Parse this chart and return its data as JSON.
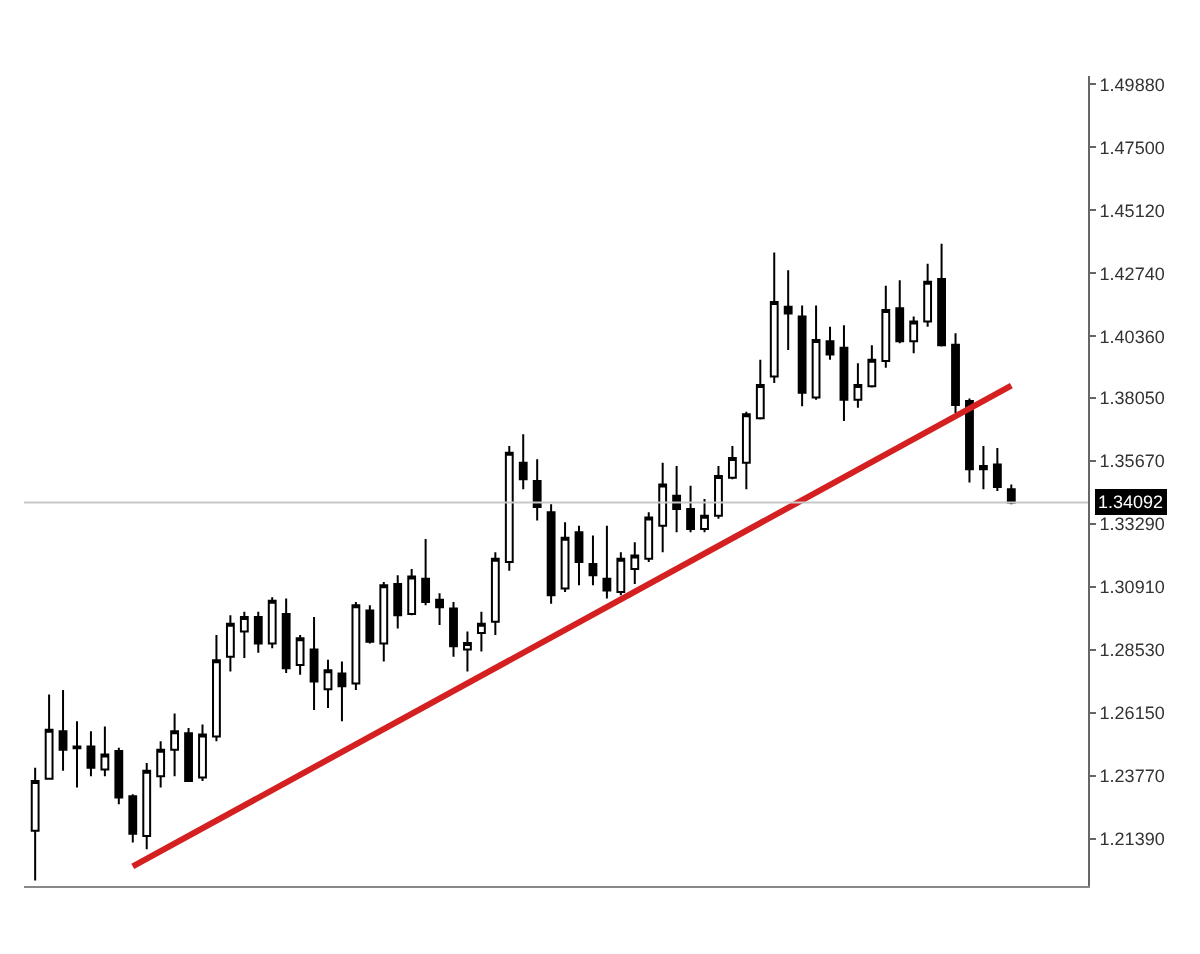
{
  "chart_data": {
    "type": "candlestick",
    "categories": [
      null,
      null,
      null,
      null,
      null,
      null,
      null,
      null,
      null,
      null,
      null,
      null,
      null,
      null,
      null,
      null,
      null,
      null,
      null,
      null,
      null,
      null,
      null,
      null,
      null,
      null,
      null,
      null,
      null,
      null,
      null,
      null,
      null,
      null,
      null,
      null,
      null,
      null,
      null,
      null,
      null,
      null,
      null,
      null,
      null,
      null,
      null,
      null,
      null,
      null,
      null,
      null,
      null,
      null,
      null,
      null,
      null,
      null,
      null,
      null,
      null,
      null,
      null,
      null,
      null,
      null,
      null,
      null,
      null,
      null,
      null
    ],
    "ohlc": [
      [
        1.2169,
        1.2407,
        1.1981,
        1.2357
      ],
      [
        1.2365,
        1.2683,
        1.2365,
        1.255
      ],
      [
        1.2545,
        1.27,
        1.2395,
        1.2475
      ],
      [
        1.2487,
        1.2582,
        1.2332,
        1.248
      ],
      [
        1.2487,
        1.2545,
        1.2375,
        1.2407
      ],
      [
        1.24,
        1.2563,
        1.2375,
        1.2457
      ],
      [
        1.247,
        1.2482,
        1.2269,
        1.2294
      ],
      [
        1.2299,
        1.2307,
        1.2124,
        1.2157
      ],
      [
        1.2149,
        1.2425,
        1.2099,
        1.2395
      ],
      [
        1.2375,
        1.2507,
        1.2332,
        1.2475
      ],
      [
        1.2475,
        1.2612,
        1.2375,
        1.2545
      ],
      [
        1.2537,
        1.2557,
        1.2357,
        1.2357
      ],
      [
        1.237,
        1.257,
        1.2357,
        1.2532
      ],
      [
        1.2525,
        1.2908,
        1.2507,
        1.2813
      ],
      [
        1.2826,
        1.2983,
        1.277,
        1.2951
      ],
      [
        1.2921,
        1.2996,
        1.2821,
        1.2976
      ],
      [
        1.2976,
        1.2996,
        1.2841,
        1.2876
      ],
      [
        1.2876,
        1.3051,
        1.2858,
        1.3038
      ],
      [
        1.2988,
        1.3046,
        1.2765,
        1.2783
      ],
      [
        1.2795,
        1.2908,
        1.2758,
        1.2896
      ],
      [
        1.2853,
        1.2976,
        1.2625,
        1.2733
      ],
      [
        1.2703,
        1.2815,
        1.2632,
        1.2775
      ],
      [
        1.2763,
        1.2808,
        1.2582,
        1.2715
      ],
      [
        1.2725,
        1.3033,
        1.27,
        1.3021
      ],
      [
        1.3001,
        1.3021,
        1.2876,
        1.2883
      ],
      [
        1.2876,
        1.3108,
        1.2808,
        1.3096
      ],
      [
        1.3101,
        1.3134,
        1.2933,
        1.2983
      ],
      [
        1.2988,
        1.3158,
        1.2983,
        1.3129
      ],
      [
        1.3121,
        1.3271,
        1.3021,
        1.3033
      ],
      [
        1.3041,
        1.3066,
        1.2946,
        1.3013
      ],
      [
        1.3008,
        1.3033,
        1.2826,
        1.2866
      ],
      [
        1.2853,
        1.2921,
        1.277,
        1.2878
      ],
      [
        1.2916,
        1.2996,
        1.2846,
        1.2951
      ],
      [
        1.2958,
        1.3221,
        1.2908,
        1.3196
      ],
      [
        1.3184,
        1.3622,
        1.3151,
        1.3597
      ],
      [
        1.3559,
        1.3667,
        1.3459,
        1.3497
      ],
      [
        1.349,
        1.3572,
        1.3341,
        1.3392
      ],
      [
        1.3372,
        1.3402,
        1.3026,
        1.3058
      ],
      [
        1.3084,
        1.3334,
        1.3071,
        1.3276
      ],
      [
        1.3296,
        1.3321,
        1.3096,
        1.3184
      ],
      [
        1.3176,
        1.3284,
        1.3096,
        1.3134
      ],
      [
        1.3121,
        1.3321,
        1.3046,
        1.3076
      ],
      [
        1.3071,
        1.3221,
        1.3058,
        1.3196
      ],
      [
        1.3158,
        1.3259,
        1.3101,
        1.3209
      ],
      [
        1.3196,
        1.3372,
        1.3184,
        1.3352
      ],
      [
        1.3321,
        1.3559,
        1.3221,
        1.3477
      ],
      [
        1.3434,
        1.3547,
        1.3296,
        1.3384
      ],
      [
        1.3384,
        1.3472,
        1.3296,
        1.3309
      ],
      [
        1.3309,
        1.3422,
        1.3296,
        1.3359
      ],
      [
        1.3359,
        1.3547,
        1.3347,
        1.3509
      ],
      [
        1.3502,
        1.3622,
        1.3497,
        1.3577
      ],
      [
        1.3559,
        1.3752,
        1.3459,
        1.3742
      ],
      [
        1.3727,
        1.3948,
        1.3722,
        1.3853
      ],
      [
        1.3885,
        1.4353,
        1.386,
        1.4166
      ],
      [
        1.4148,
        1.4286,
        1.3985,
        1.4123
      ],
      [
        1.4111,
        1.4153,
        1.3772,
        1.3823
      ],
      [
        1.3805,
        1.4153,
        1.3797,
        1.4023
      ],
      [
        1.4018,
        1.4073,
        1.3948,
        1.3968
      ],
      [
        1.3993,
        1.4078,
        1.3717,
        1.3797
      ],
      [
        1.3797,
        1.3935,
        1.3767,
        1.3853
      ],
      [
        1.3848,
        1.4003,
        1.3843,
        1.3948
      ],
      [
        1.3943,
        1.4228,
        1.3918,
        1.4136
      ],
      [
        1.4143,
        1.4248,
        1.401,
        1.4018
      ],
      [
        1.4018,
        1.4111,
        1.3973,
        1.4093
      ],
      [
        1.4093,
        1.4311,
        1.4073,
        1.4243
      ],
      [
        1.4253,
        1.4386,
        1.3998,
        1.4003
      ],
      [
        1.4005,
        1.4048,
        1.3747,
        1.3777
      ],
      [
        1.3792,
        1.3802,
        1.3484,
        1.3534
      ],
      [
        1.3547,
        1.3622,
        1.3459,
        1.3534
      ],
      [
        1.3552,
        1.3615,
        1.3452,
        1.3467
      ],
      [
        1.3459,
        1.3477,
        1.3402,
        1.3409
      ]
    ],
    "series": [
      {
        "type": "line",
        "color": "#d42020",
        "values": [
          null,
          null,
          null,
          null,
          null,
          null,
          null,
          1.2034,
          null,
          null,
          null,
          null,
          null,
          null,
          null,
          null,
          null,
          null,
          null,
          null,
          null,
          null,
          null,
          null,
          null,
          null,
          null,
          null,
          null,
          null,
          null,
          null,
          null,
          null,
          null,
          null,
          null,
          null,
          null,
          null,
          null,
          null,
          null,
          null,
          null,
          null,
          null,
          null,
          null,
          null,
          null,
          null,
          null,
          null,
          null,
          null,
          null,
          null,
          null,
          null,
          null,
          null,
          null,
          null,
          null,
          null,
          null,
          null,
          null,
          null,
          1.385
        ]
      }
    ],
    "ylim": [
      1.196,
      1.502
    ],
    "yticks": [
      {
        "value": 1.2139,
        "label": "1.21390"
      },
      {
        "value": 1.2377,
        "label": "1.23770"
      },
      {
        "value": 1.2615,
        "label": "1.26150"
      },
      {
        "value": 1.2853,
        "label": "1.28530"
      },
      {
        "value": 1.3091,
        "label": "1.30910"
      },
      {
        "value": 1.3329,
        "label": "1.33290"
      },
      {
        "value": 1.3567,
        "label": "1.35670"
      },
      {
        "value": 1.3805,
        "label": "1.38050"
      },
      {
        "value": 1.4036,
        "label": "1.40360"
      },
      {
        "value": 1.4274,
        "label": "1.42740"
      },
      {
        "value": 1.4512,
        "label": "1.45120"
      },
      {
        "value": 1.475,
        "label": "1.47500"
      },
      {
        "value": 1.4988,
        "label": "1.49880"
      }
    ],
    "ref_lines": [
      {
        "axis": "y",
        "value": 1.34092,
        "label": "1.34092",
        "color": "#c8c8c8"
      }
    ],
    "tick_labels": "y"
  }
}
